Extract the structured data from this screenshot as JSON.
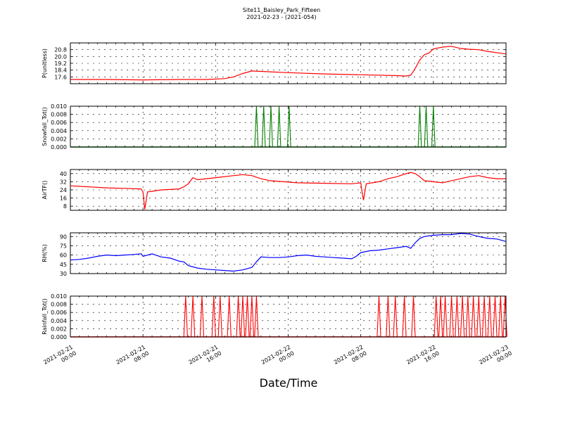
{
  "title": "Site11_Baisley_Park_Fifteen",
  "subtitle": "2021-02-23 - (2021-054)",
  "chart_data": {
    "type": "line",
    "xlabel": "Date/Time",
    "x_ticks": [
      [
        "2021-02-21",
        "00:00"
      ],
      [
        "2021-02-21",
        "08:00"
      ],
      [
        "2021-02-21",
        "16:00"
      ],
      [
        "2021-02-22",
        "00:00"
      ],
      [
        "2021-02-22",
        "08:00"
      ],
      [
        "2021-02-22",
        "16:00"
      ],
      [
        "2021-02-23",
        "00:00"
      ]
    ],
    "x_range_hours": [
      0,
      48
    ],
    "panels": [
      {
        "ylabel": "P(unitless)",
        "color": "#ff0000",
        "ylim": [
          16.8,
          21.6
        ],
        "yticks": [
          17.6,
          18.4,
          19.2,
          20.0,
          20.8
        ],
        "tick_decimals": 1,
        "style": "line",
        "series": [
          [
            0,
            17.3
          ],
          [
            4,
            17.3
          ],
          [
            8,
            17.25
          ],
          [
            12,
            17.3
          ],
          [
            15,
            17.3
          ],
          [
            17,
            17.4
          ],
          [
            18,
            17.6
          ],
          [
            19,
            18.0
          ],
          [
            20,
            18.3
          ],
          [
            21,
            18.25
          ],
          [
            24,
            18.1
          ],
          [
            28,
            17.95
          ],
          [
            32,
            17.85
          ],
          [
            36,
            17.75
          ],
          [
            37,
            17.7
          ],
          [
            37.5,
            17.8
          ],
          [
            38,
            18.6
          ],
          [
            38.5,
            19.6
          ],
          [
            39,
            20.2
          ],
          [
            39.5,
            20.4
          ],
          [
            40,
            20.9
          ],
          [
            41,
            21.1
          ],
          [
            42,
            21.2
          ],
          [
            43,
            20.95
          ],
          [
            44,
            20.85
          ],
          [
            45,
            20.8
          ],
          [
            46,
            20.6
          ],
          [
            48,
            20.3
          ]
        ]
      },
      {
        "ylabel": "Snowfall_Tot()",
        "color": "#008000",
        "ylim": [
          0,
          0.01
        ],
        "yticks": [
          0.0,
          0.002,
          0.004,
          0.006,
          0.008,
          0.01
        ],
        "tick_decimals": 3,
        "style": "spikes",
        "spikes": [
          20.5,
          21.3,
          22.1,
          23.0,
          24.1,
          38.5,
          39.2,
          40.0
        ],
        "spike_width": 0.18
      },
      {
        "ylabel": "AirTF()",
        "color": "#ff0000",
        "ylim": [
          4,
          44
        ],
        "yticks": [
          8,
          16,
          24,
          32,
          40
        ],
        "tick_decimals": 0,
        "style": "line",
        "series": [
          [
            0,
            28
          ],
          [
            2,
            27
          ],
          [
            4,
            26
          ],
          [
            6,
            25.5
          ],
          [
            7.8,
            25
          ],
          [
            8,
            22
          ],
          [
            8.2,
            5
          ],
          [
            8.5,
            22
          ],
          [
            10,
            24
          ],
          [
            12,
            25
          ],
          [
            12.5,
            27
          ],
          [
            13,
            30
          ],
          [
            13.5,
            36
          ],
          [
            14,
            34
          ],
          [
            15,
            35
          ],
          [
            16,
            36
          ],
          [
            18,
            38
          ],
          [
            19,
            39
          ],
          [
            20,
            38
          ],
          [
            21,
            35
          ],
          [
            22,
            33
          ],
          [
            25,
            31
          ],
          [
            28,
            30.5
          ],
          [
            31,
            30
          ],
          [
            32,
            31
          ],
          [
            32.1,
            24
          ],
          [
            32.3,
            14
          ],
          [
            32.6,
            30
          ],
          [
            34,
            32
          ],
          [
            35,
            35
          ],
          [
            36,
            37
          ],
          [
            37,
            40
          ],
          [
            37.5,
            41
          ],
          [
            38,
            40
          ],
          [
            38.5,
            37
          ],
          [
            39,
            33
          ],
          [
            40,
            32
          ],
          [
            41,
            31
          ],
          [
            42,
            33
          ],
          [
            43,
            35
          ],
          [
            44,
            37
          ],
          [
            45,
            38
          ],
          [
            46,
            36
          ],
          [
            47,
            35
          ],
          [
            48,
            35
          ]
        ]
      },
      {
        "ylabel": "RH(%)",
        "color": "#0000ff",
        "ylim": [
          30,
          96
        ],
        "yticks": [
          30,
          45,
          60,
          75,
          90
        ],
        "tick_decimals": 0,
        "style": "line",
        "series": [
          [
            0,
            52
          ],
          [
            1,
            53
          ],
          [
            2,
            55
          ],
          [
            3,
            58
          ],
          [
            4,
            60
          ],
          [
            5,
            59
          ],
          [
            6,
            60
          ],
          [
            7,
            61
          ],
          [
            7.8,
            62
          ],
          [
            8,
            58
          ],
          [
            9,
            62
          ],
          [
            10,
            57
          ],
          [
            11,
            55
          ],
          [
            12,
            50
          ],
          [
            12.5,
            49
          ],
          [
            13,
            43
          ],
          [
            14,
            39
          ],
          [
            15,
            37
          ],
          [
            16,
            36
          ],
          [
            17,
            35
          ],
          [
            18,
            34
          ],
          [
            19,
            36
          ],
          [
            20,
            40
          ],
          [
            20.5,
            49
          ],
          [
            21,
            57
          ],
          [
            22,
            56
          ],
          [
            23,
            56
          ],
          [
            24,
            57
          ],
          [
            25,
            59
          ],
          [
            26,
            60
          ],
          [
            27,
            58
          ],
          [
            28,
            57
          ],
          [
            29,
            56
          ],
          [
            30,
            55
          ],
          [
            31,
            54
          ],
          [
            31.5,
            58
          ],
          [
            32,
            64
          ],
          [
            33,
            67
          ],
          [
            34,
            68
          ],
          [
            35,
            70
          ],
          [
            36,
            72
          ],
          [
            37,
            74
          ],
          [
            37.5,
            71
          ],
          [
            38,
            80
          ],
          [
            38.5,
            87
          ],
          [
            39,
            90
          ],
          [
            40,
            92
          ],
          [
            41,
            93
          ],
          [
            42,
            93
          ],
          [
            43,
            95
          ],
          [
            44,
            94
          ],
          [
            45,
            90
          ],
          [
            46,
            87
          ],
          [
            47,
            86
          ],
          [
            48,
            82
          ]
        ]
      },
      {
        "ylabel": "Rainfall_Tot()",
        "color": "#ff0000",
        "ylim": [
          0,
          0.01
        ],
        "yticks": [
          0.0,
          0.002,
          0.004,
          0.006,
          0.008,
          0.01
        ],
        "tick_decimals": 3,
        "style": "spikes",
        "spikes": [
          12.7,
          13.5,
          14.5,
          15.8,
          16.5,
          17.5,
          18.5,
          19.0,
          19.5,
          20.0,
          20.5,
          34.0,
          35.0,
          35.8,
          36.8,
          37.8,
          40.3,
          40.8,
          41.3,
          42.0,
          42.6,
          43.2,
          43.8,
          44.4,
          45.0,
          45.6,
          46.2,
          46.8,
          47.4,
          47.9
        ],
        "spike_width": 0.2
      }
    ]
  }
}
